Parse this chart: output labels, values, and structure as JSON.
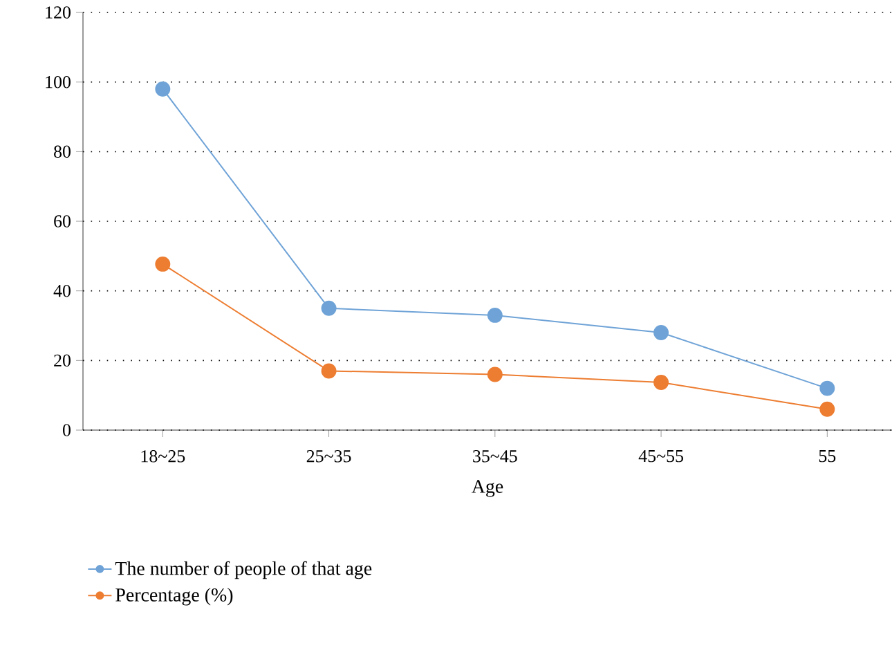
{
  "chart_data": {
    "type": "line",
    "xlabel": "Age",
    "categories": [
      "18~25",
      "25~35",
      "35~45",
      "45~55",
      "55"
    ],
    "series": [
      {
        "name": "The number of people of that age",
        "color": "#6fa3d7",
        "values": [
          98,
          35,
          33,
          28,
          12
        ]
      },
      {
        "name": "Percentage (%)",
        "color": "#ed7d31",
        "values": [
          47.7,
          17,
          16,
          13.7,
          6
        ]
      }
    ],
    "ylim": [
      0,
      120
    ],
    "yticks": [
      0,
      20,
      40,
      60,
      80,
      100,
      120
    ],
    "grid": "y",
    "legend": "bottom",
    "marker": "circle",
    "line_style": "solid"
  }
}
